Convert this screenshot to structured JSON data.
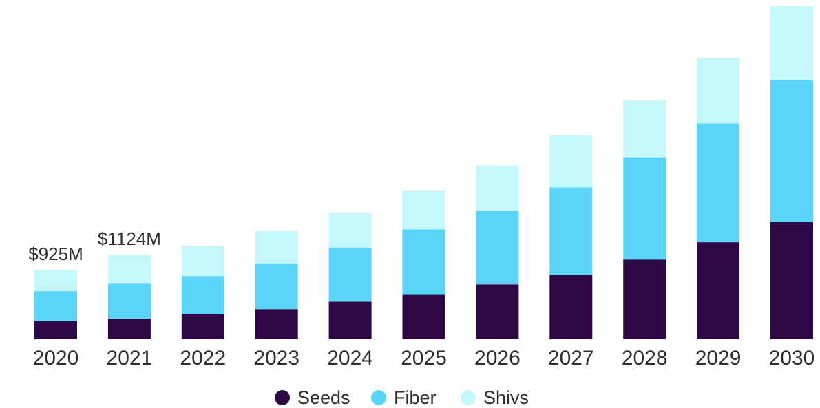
{
  "chart_data": {
    "type": "bar",
    "stacked": true,
    "categories": [
      "2020",
      "2021",
      "2022",
      "2023",
      "2024",
      "2025",
      "2026",
      "2027",
      "2028",
      "2029",
      "2030"
    ],
    "series": [
      {
        "name": "Seeds",
        "color": "#2e0845",
        "values": [
          240,
          270,
          330,
          400,
          500,
          590,
          730,
          860,
          1060,
          1290,
          1560
        ]
      },
      {
        "name": "Fiber",
        "color": "#5ad5f7",
        "values": [
          400,
          470,
          510,
          610,
          720,
          870,
          980,
          1160,
          1360,
          1580,
          1890
        ]
      },
      {
        "name": "Shivs",
        "color": "#c6f7fb",
        "values": [
          285,
          384,
          400,
          430,
          460,
          520,
          600,
          700,
          760,
          870,
          990
        ]
      }
    ],
    "totals": [
      925,
      1124,
      1240,
      1440,
      1680,
      1980,
      2310,
      2720,
      3180,
      3740,
      4440
    ],
    "data_labels": [
      {
        "category": "2020",
        "text": "$925M"
      },
      {
        "category": "2021",
        "text": "$1124M"
      }
    ],
    "ylim": [
      0,
      4440
    ],
    "grid": false,
    "legend_position": "bottom-center",
    "title": "",
    "xlabel": "",
    "ylabel": ""
  }
}
